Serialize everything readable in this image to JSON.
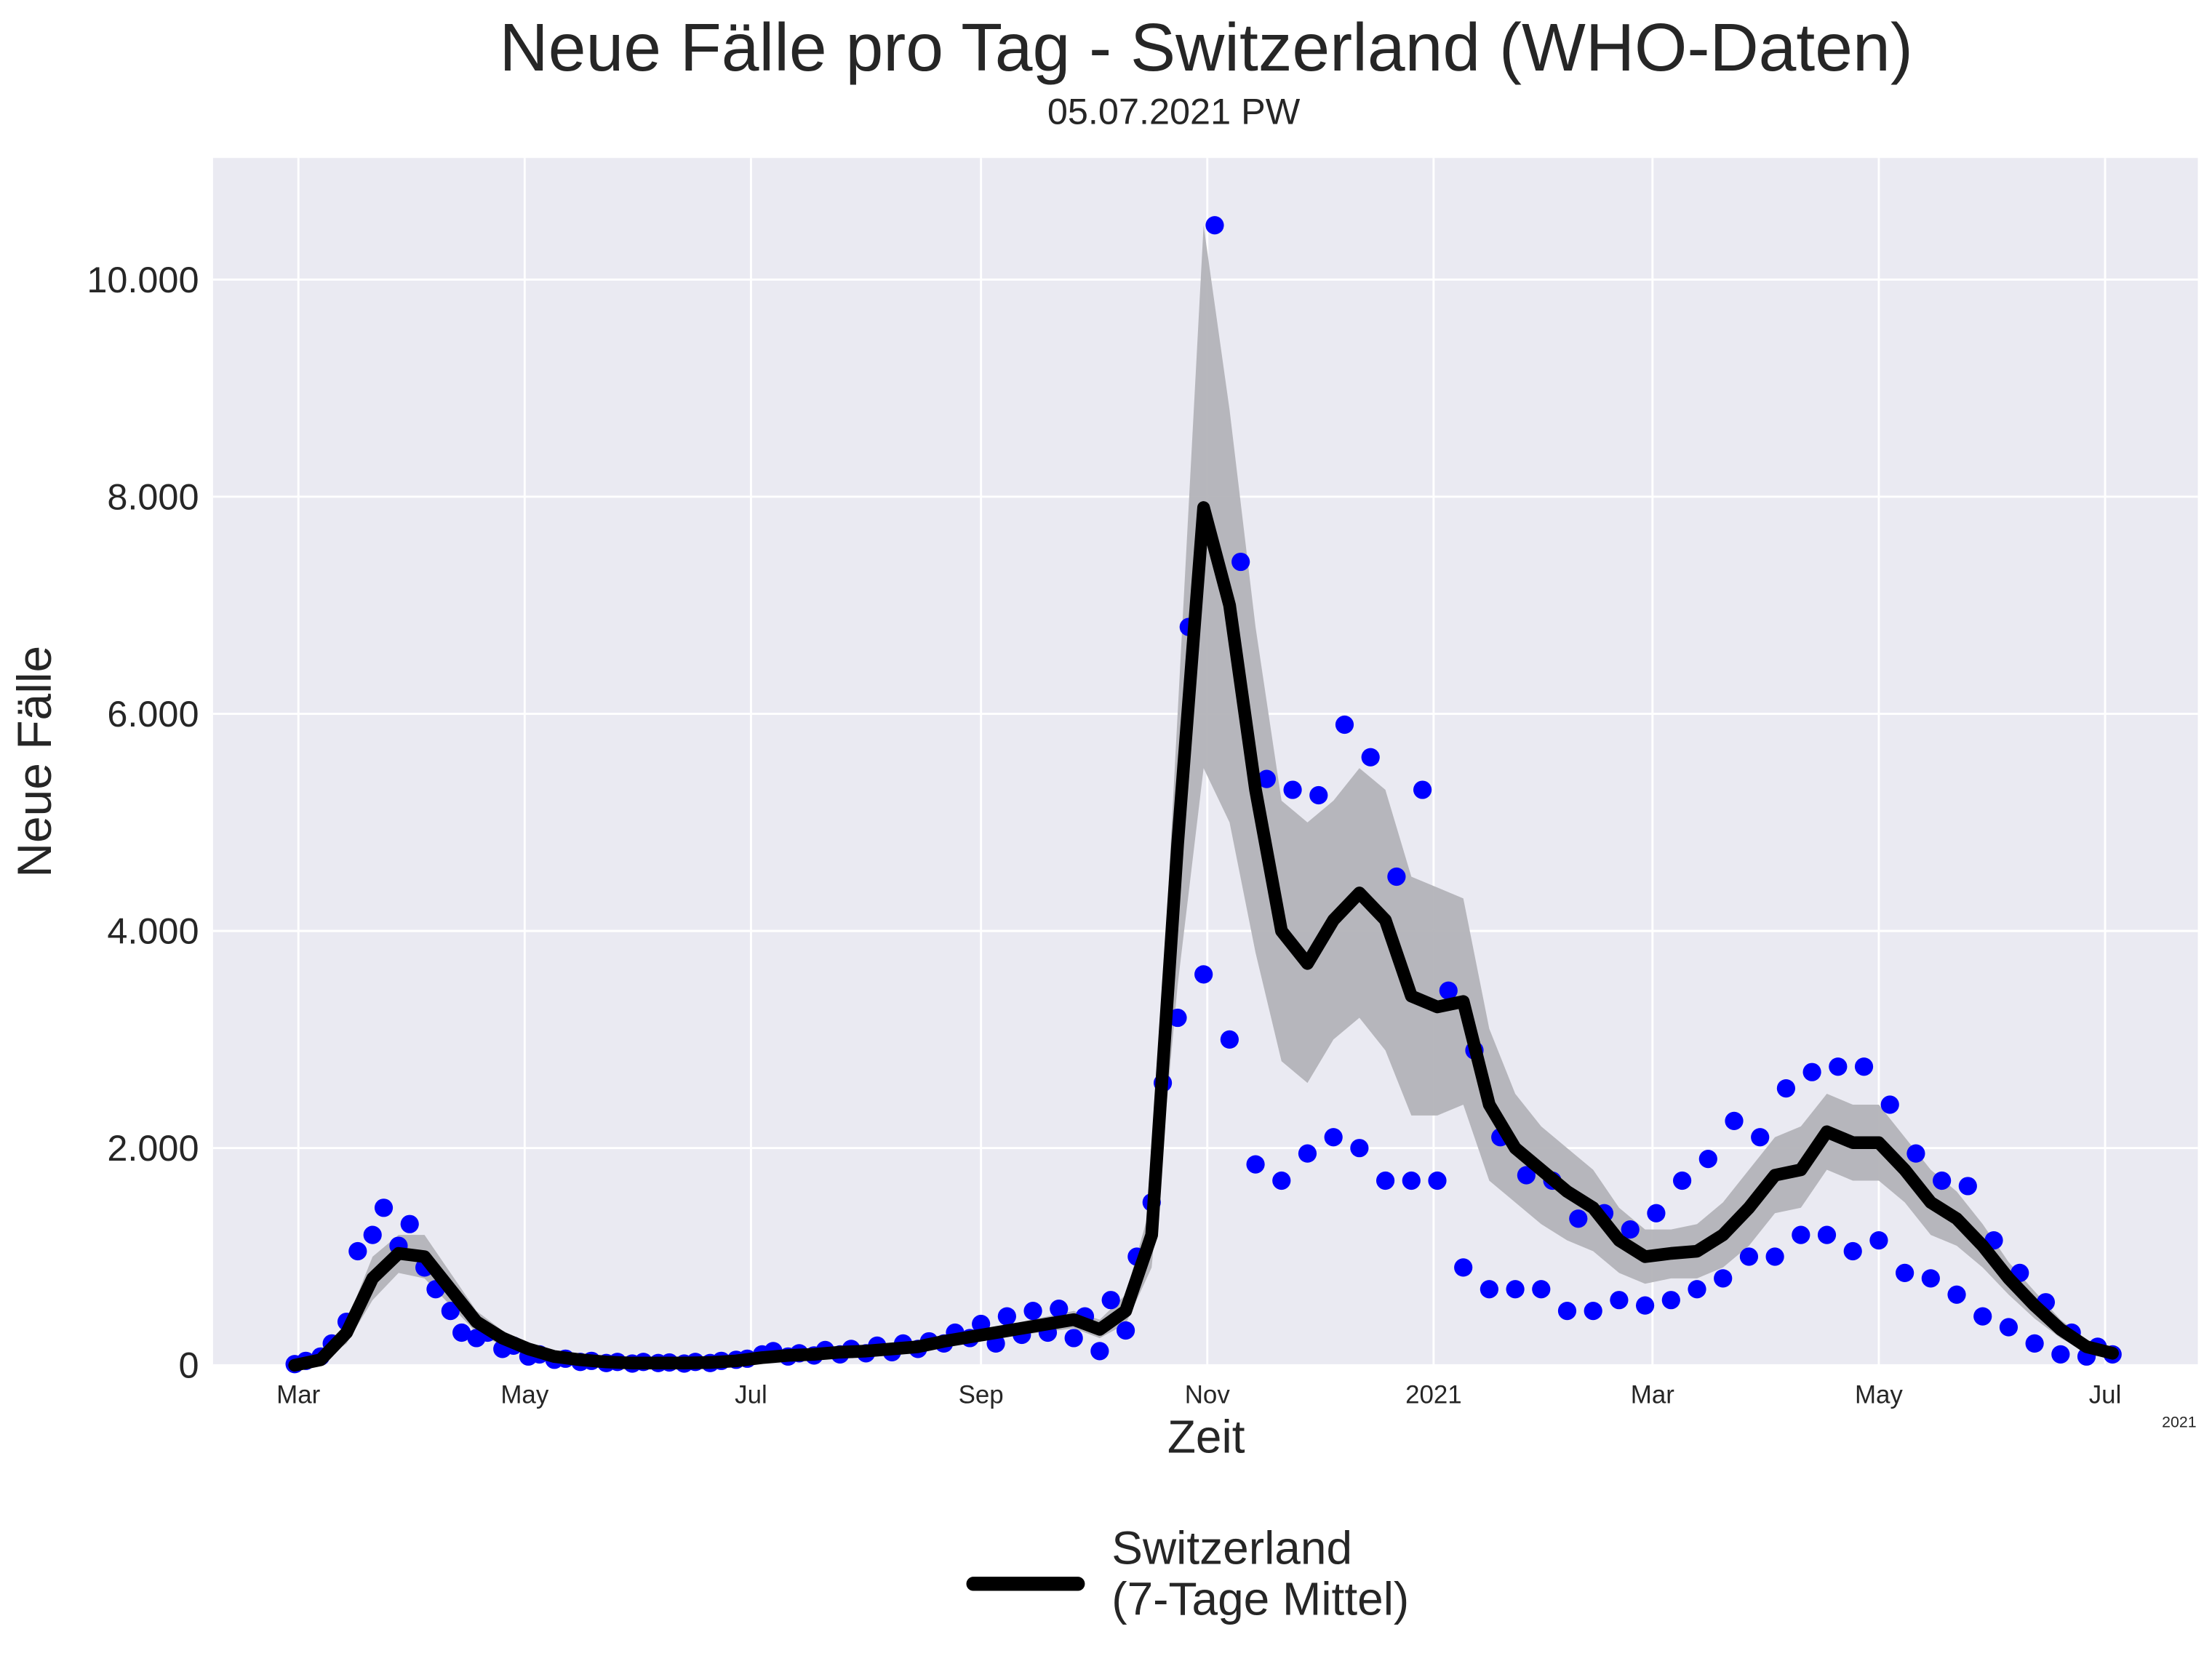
{
  "chart_data": {
    "type": "line",
    "title": "Neue Fälle pro Tag - Switzerland (WHO-Daten)",
    "subtitle": "05.07.2021 PW",
    "xlabel": "Zeit",
    "ylabel": "Neue Fälle",
    "x_offset_label": "2021",
    "x": [
      "2020-02-29",
      "2020-03-07",
      "2020-03-14",
      "2020-03-21",
      "2020-03-28",
      "2020-04-04",
      "2020-04-11",
      "2020-04-18",
      "2020-04-25",
      "2020-05-02",
      "2020-05-09",
      "2020-05-16",
      "2020-05-23",
      "2020-05-30",
      "2020-06-06",
      "2020-06-13",
      "2020-06-20",
      "2020-06-27",
      "2020-07-04",
      "2020-07-11",
      "2020-07-18",
      "2020-07-25",
      "2020-08-01",
      "2020-08-08",
      "2020-08-15",
      "2020-08-22",
      "2020-08-29",
      "2020-09-05",
      "2020-09-12",
      "2020-09-19",
      "2020-09-26",
      "2020-10-03",
      "2020-10-10",
      "2020-10-17",
      "2020-10-24",
      "2020-10-31",
      "2020-11-07",
      "2020-11-14",
      "2020-11-21",
      "2020-11-28",
      "2020-12-05",
      "2020-12-12",
      "2020-12-19",
      "2020-12-26",
      "2021-01-02",
      "2021-01-09",
      "2021-01-16",
      "2021-01-23",
      "2021-01-30",
      "2021-02-06",
      "2021-02-13",
      "2021-02-20",
      "2021-02-27",
      "2021-03-06",
      "2021-03-13",
      "2021-03-20",
      "2021-03-27",
      "2021-04-03",
      "2021-04-10",
      "2021-04-17",
      "2021-04-24",
      "2021-05-01",
      "2021-05-08",
      "2021-05-15",
      "2021-05-22",
      "2021-05-29",
      "2021-06-05",
      "2021-06-12",
      "2021-06-19",
      "2021-06-26",
      "2021-07-03"
    ],
    "series": [
      {
        "name": "Switzerland\n(7-Tage Mittel)",
        "color": "#000000",
        "values": [
          0,
          50,
          300,
          800,
          1030,
          1000,
          700,
          400,
          250,
          150,
          80,
          50,
          30,
          20,
          20,
          20,
          25,
          40,
          70,
          90,
          100,
          120,
          130,
          150,
          170,
          220,
          260,
          300,
          340,
          380,
          420,
          330,
          500,
          1200,
          4800,
          7900,
          7000,
          5300,
          4000,
          3700,
          4100,
          4350,
          4100,
          3400,
          3300,
          3350,
          2400,
          2000,
          1800,
          1600,
          1450,
          1150,
          1000,
          1030,
          1050,
          1200,
          1450,
          1750,
          1800,
          2150,
          2050,
          2050,
          1800,
          1500,
          1350,
          1100,
          800,
          550,
          330,
          170,
          110
        ]
      }
    ],
    "band": {
      "color": "#b3b3b8",
      "lower": [
        0,
        30,
        200,
        600,
        850,
        800,
        550,
        300,
        180,
        100,
        50,
        30,
        20,
        10,
        10,
        10,
        15,
        25,
        50,
        70,
        80,
        100,
        110,
        120,
        140,
        180,
        210,
        250,
        280,
        310,
        340,
        250,
        380,
        900,
        3500,
        5500,
        5000,
        3800,
        2800,
        2600,
        3000,
        3200,
        2900,
        2300,
        2300,
        2400,
        1700,
        1500,
        1300,
        1150,
        1050,
        850,
        750,
        800,
        800,
        900,
        1100,
        1400,
        1450,
        1800,
        1700,
        1700,
        1500,
        1200,
        1100,
        900,
        650,
        430,
        250,
        120,
        80
      ],
      "upper": [
        0,
        80,
        400,
        1000,
        1200,
        1200,
        850,
        500,
        320,
        200,
        110,
        70,
        45,
        30,
        30,
        30,
        35,
        55,
        90,
        110,
        120,
        140,
        160,
        180,
        210,
        260,
        310,
        360,
        400,
        450,
        500,
        420,
        650,
        1500,
        6000,
        10500,
        8800,
        6800,
        5200,
        5000,
        5200,
        5500,
        5300,
        4500,
        4400,
        4300,
        3100,
        2500,
        2200,
        2000,
        1800,
        1450,
        1250,
        1250,
        1300,
        1500,
        1800,
        2100,
        2200,
        2500,
        2400,
        2400,
        2100,
        1800,
        1600,
        1300,
        950,
        680,
        420,
        230,
        140
      ]
    },
    "points": {
      "color": "#0000ff",
      "x": [
        "2020-02-29",
        "2020-03-03",
        "2020-03-07",
        "2020-03-10",
        "2020-03-14",
        "2020-03-17",
        "2020-03-21",
        "2020-03-24",
        "2020-03-28",
        "2020-03-31",
        "2020-04-04",
        "2020-04-07",
        "2020-04-11",
        "2020-04-14",
        "2020-04-18",
        "2020-04-21",
        "2020-04-25",
        "2020-04-28",
        "2020-05-02",
        "2020-05-05",
        "2020-05-09",
        "2020-05-12",
        "2020-05-16",
        "2020-05-19",
        "2020-05-23",
        "2020-05-26",
        "2020-05-30",
        "2020-06-02",
        "2020-06-06",
        "2020-06-09",
        "2020-06-13",
        "2020-06-16",
        "2020-06-20",
        "2020-06-23",
        "2020-06-27",
        "2020-06-30",
        "2020-07-04",
        "2020-07-07",
        "2020-07-11",
        "2020-07-14",
        "2020-07-18",
        "2020-07-21",
        "2020-07-25",
        "2020-07-28",
        "2020-08-01",
        "2020-08-04",
        "2020-08-08",
        "2020-08-11",
        "2020-08-15",
        "2020-08-18",
        "2020-08-22",
        "2020-08-25",
        "2020-08-29",
        "2020-09-01",
        "2020-09-05",
        "2020-09-08",
        "2020-09-12",
        "2020-09-15",
        "2020-09-19",
        "2020-09-22",
        "2020-09-26",
        "2020-09-29",
        "2020-10-03",
        "2020-10-06",
        "2020-10-10",
        "2020-10-13",
        "2020-10-17",
        "2020-10-20",
        "2020-10-24",
        "2020-10-27",
        "2020-10-31",
        "2020-11-03",
        "2020-11-07",
        "2020-11-10",
        "2020-11-14",
        "2020-11-17",
        "2020-11-21",
        "2020-11-24",
        "2020-11-28",
        "2020-12-01",
        "2020-12-05",
        "2020-12-08",
        "2020-12-12",
        "2020-12-15",
        "2020-12-19",
        "2020-12-22",
        "2020-12-26",
        "2020-12-29",
        "2021-01-02",
        "2021-01-05",
        "2021-01-09",
        "2021-01-12",
        "2021-01-16",
        "2021-01-19",
        "2021-01-23",
        "2021-01-26",
        "2021-01-30",
        "2021-02-02",
        "2021-02-06",
        "2021-02-09",
        "2021-02-13",
        "2021-02-16",
        "2021-02-20",
        "2021-02-23",
        "2021-02-27",
        "2021-03-02",
        "2021-03-06",
        "2021-03-09",
        "2021-03-13",
        "2021-03-16",
        "2021-03-20",
        "2021-03-23",
        "2021-03-27",
        "2021-03-30",
        "2021-04-03",
        "2021-04-06",
        "2021-04-10",
        "2021-04-13",
        "2021-04-17",
        "2021-04-20",
        "2021-04-24",
        "2021-04-27",
        "2021-05-01",
        "2021-05-04",
        "2021-05-08",
        "2021-05-11",
        "2021-05-15",
        "2021-05-18",
        "2021-05-22",
        "2021-05-25",
        "2021-05-29",
        "2021-06-01",
        "2021-06-05",
        "2021-06-08",
        "2021-06-12",
        "2021-06-15",
        "2021-06-19",
        "2021-06-22",
        "2021-06-26",
        "2021-06-29",
        "2021-07-03"
      ],
      "values": [
        10,
        40,
        80,
        200,
        400,
        1050,
        1200,
        1450,
        1100,
        1300,
        900,
        700,
        500,
        300,
        250,
        300,
        150,
        180,
        80,
        100,
        50,
        60,
        30,
        40,
        20,
        30,
        15,
        30,
        20,
        25,
        15,
        30,
        20,
        40,
        50,
        60,
        100,
        130,
        80,
        110,
        90,
        140,
        100,
        150,
        110,
        180,
        120,
        200,
        150,
        220,
        200,
        300,
        250,
        380,
        200,
        450,
        280,
        500,
        300,
        520,
        250,
        450,
        130,
        600,
        320,
        1000,
        1500,
        2600,
        3200,
        6800,
        3600,
        10500,
        3000,
        7400,
        1850,
        5400,
        1700,
        5300,
        1950,
        5250,
        2100,
        5900,
        2000,
        5600,
        1700,
        4500,
        1700,
        5300,
        1700,
        3450,
        900,
        2900,
        700,
        2100,
        700,
        1750,
        700,
        1700,
        500,
        1350,
        500,
        1400,
        600,
        1250,
        550,
        1400,
        600,
        1700,
        700,
        1900,
        800,
        2250,
        1000,
        2100,
        1000,
        2550,
        1200,
        2700,
        1200,
        2750,
        1050,
        2750,
        1150,
        2400,
        850,
        1950,
        800,
        1700,
        650,
        1650,
        450,
        1150,
        350,
        850,
        200,
        580,
        100,
        300,
        80,
        170,
        100
      ]
    },
    "xlim": [
      "2020-02-07",
      "2021-07-26"
    ],
    "xticks": [
      {
        "value": "2020-03-01",
        "label": "Mar"
      },
      {
        "value": "2020-05-01",
        "label": "May"
      },
      {
        "value": "2020-07-01",
        "label": "Jul"
      },
      {
        "value": "2020-09-01",
        "label": "Sep"
      },
      {
        "value": "2020-11-01",
        "label": "Nov"
      },
      {
        "value": "2021-01-01",
        "label": "2021"
      },
      {
        "value": "2021-03-01",
        "label": "Mar"
      },
      {
        "value": "2021-05-01",
        "label": "May"
      },
      {
        "value": "2021-07-01",
        "label": "Jul"
      }
    ],
    "ylim": [
      0,
      11120
    ],
    "yticks": [
      0,
      {
        "value": 2000,
        "label": "2.000"
      },
      {
        "value": 4000,
        "label": "4.000"
      },
      {
        "value": 6000,
        "label": "6.000"
      },
      {
        "value": 8000,
        "label": "8.000"
      },
      {
        "value": 10000,
        "label": "10.000"
      }
    ],
    "grid": true,
    "legend": "lower center"
  }
}
